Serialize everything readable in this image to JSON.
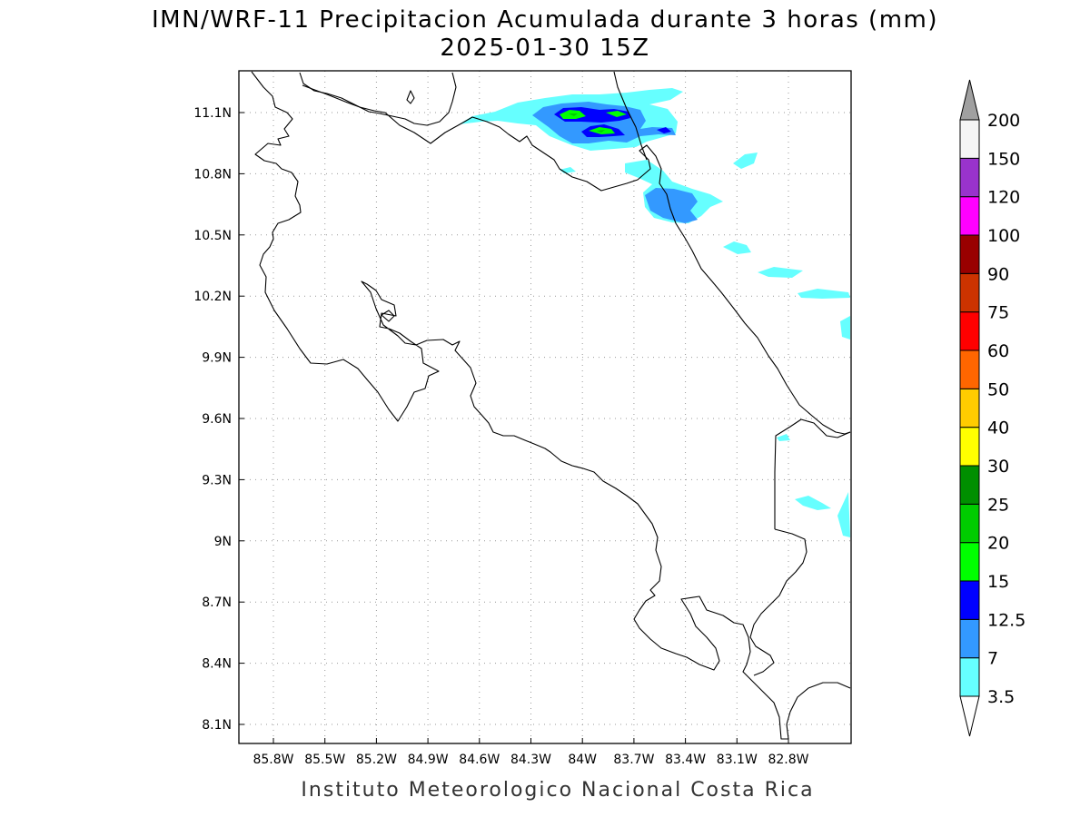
{
  "title": {
    "line1": "IMN/WRF-11 Precipitacion Acumulada durante 3 horas (mm)",
    "line2": "2025-01-30 15Z"
  },
  "footer": "Instituto Meteorologico Nacional Costa Rica",
  "x_ticks": [
    {
      "lon": -85.8,
      "label": "85.8W"
    },
    {
      "lon": -85.5,
      "label": "85.5W"
    },
    {
      "lon": -85.2,
      "label": "85.2W"
    },
    {
      "lon": -84.9,
      "label": "84.9W"
    },
    {
      "lon": -84.6,
      "label": "84.6W"
    },
    {
      "lon": -84.3,
      "label": "84.3W"
    },
    {
      "lon": -84.0,
      "label": "84W"
    },
    {
      "lon": -83.7,
      "label": "83.7W"
    },
    {
      "lon": -83.4,
      "label": "83.4W"
    },
    {
      "lon": -83.1,
      "label": "83.1W"
    },
    {
      "lon": -82.8,
      "label": "82.8W"
    }
  ],
  "y_ticks": [
    {
      "lat": 11.1,
      "label": "11.1N"
    },
    {
      "lat": 10.8,
      "label": "10.8N"
    },
    {
      "lat": 10.5,
      "label": "10.5N"
    },
    {
      "lat": 10.2,
      "label": "10.2N"
    },
    {
      "lat": 9.9,
      "label": "9.9N"
    },
    {
      "lat": 9.6,
      "label": "9.6N"
    },
    {
      "lat": 9.3,
      "label": "9.3N"
    },
    {
      "lat": 9.0,
      "label": "9N"
    },
    {
      "lat": 8.7,
      "label": "8.7N"
    },
    {
      "lat": 8.4,
      "label": "8.4N"
    },
    {
      "lat": 8.1,
      "label": "8.1N"
    }
  ],
  "legend": {
    "levels": [
      {
        "label": "3.5",
        "color": "#66ffff"
      },
      {
        "label": "7",
        "color": "#3399ff"
      },
      {
        "label": "12.5",
        "color": "#0000ff"
      },
      {
        "label": "15",
        "color": "#00ff00"
      },
      {
        "label": "20",
        "color": "#00cc00"
      },
      {
        "label": "25",
        "color": "#008f00"
      },
      {
        "label": "30",
        "color": "#ffff00"
      },
      {
        "label": "40",
        "color": "#ffcc00"
      },
      {
        "label": "50",
        "color": "#ff6600"
      },
      {
        "label": "60",
        "color": "#ff0000"
      },
      {
        "label": "75",
        "color": "#cc3300"
      },
      {
        "label": "90",
        "color": "#990000"
      },
      {
        "label": "100",
        "color": "#ff00ff"
      },
      {
        "label": "120",
        "color": "#9933cc"
      },
      {
        "label": "150",
        "color": "#f5f5f5"
      },
      {
        "label": "200",
        "color": null
      }
    ],
    "top_triangle_color": "#a0a0a0",
    "bottom_triangle_color": "#ffffff"
  },
  "colors": {
    "coastline": "#000000",
    "grid": "#999999"
  }
}
